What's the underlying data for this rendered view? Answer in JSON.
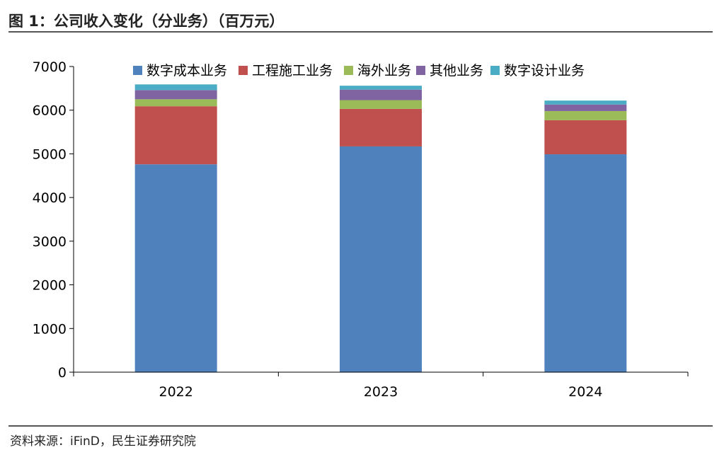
{
  "title": "图 1：公司收入变化（分业务）（百万元）",
  "source": "资料来源：iFinD，民生证券研究院",
  "chart_data": {
    "type": "bar",
    "stacked": true,
    "categories": [
      "2022",
      "2023",
      "2024"
    ],
    "ylim": [
      0,
      7000
    ],
    "yticks": [
      "0",
      "1000",
      "2000",
      "3000",
      "4000",
      "5000",
      "6000",
      "7000"
    ],
    "legend_position": "top",
    "grid": false,
    "series": [
      {
        "name": "数字成本业务",
        "color": "#4F81BD",
        "values": [
          4760,
          5170,
          4990
        ]
      },
      {
        "name": "工程施工业务",
        "color": "#C0504D",
        "values": [
          1330,
          860,
          780
        ]
      },
      {
        "name": "海外业务",
        "color": "#9BBB59",
        "values": [
          160,
          200,
          210
        ]
      },
      {
        "name": "其他业务",
        "color": "#8064A2",
        "values": [
          210,
          240,
          150
        ]
      },
      {
        "name": "数字设计业务",
        "color": "#4BACC6",
        "values": [
          130,
          90,
          90
        ]
      }
    ]
  }
}
